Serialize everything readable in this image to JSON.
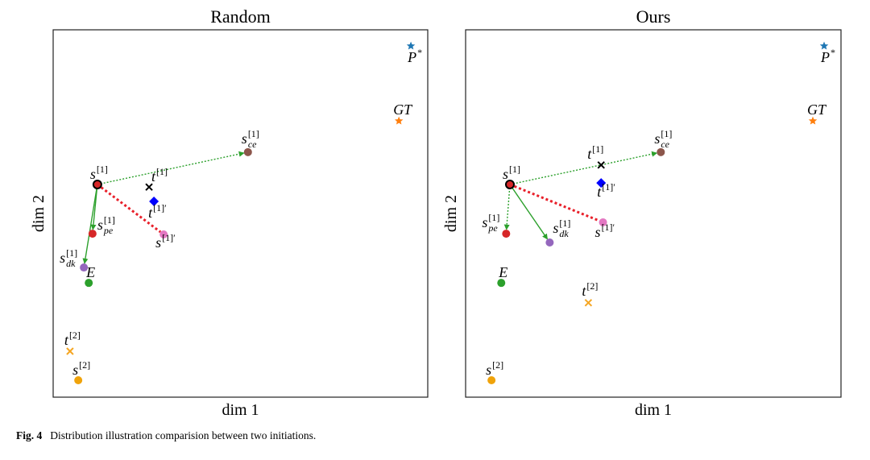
{
  "chart_data": [
    {
      "type": "scatter",
      "title": "Random",
      "xlabel": "dim 1",
      "ylabel": "dim 2",
      "xlim": [
        0,
        100
      ],
      "ylim": [
        0,
        100
      ],
      "points": [
        {
          "label": {
            "base": "P",
            "sup": "*"
          },
          "x": 95.5,
          "y": 95.6,
          "marker": "star",
          "color": "#1f77b4"
        },
        {
          "label": {
            "base": "GT"
          },
          "x": 92.3,
          "y": 75.2,
          "marker": "star",
          "color": "#ff7f0e"
        },
        {
          "label": {
            "base": "s",
            "sup": "[1]",
            "sub": "ce"
          },
          "x": 52.0,
          "y": 66.7,
          "marker": "circle",
          "color": "#8c564b"
        },
        {
          "label": {
            "base": "s",
            "sup": "[1]"
          },
          "x": 11.8,
          "y": 57.9,
          "marker": "circle",
          "color": "#d62728",
          "edge": "#000000"
        },
        {
          "label": {
            "base": "t",
            "sup": "[1]"
          },
          "x": 25.6,
          "y": 57.2,
          "marker": "x",
          "color": "#000000"
        },
        {
          "label": {
            "base": "t",
            "sup": "[1]′"
          },
          "x": 26.9,
          "y": 53.3,
          "marker": "diamond",
          "color": "#0000ff"
        },
        {
          "label": {
            "base": "s",
            "sup": "[1]",
            "sub": "pe"
          },
          "x": 10.5,
          "y": 44.5,
          "marker": "circle",
          "color": "#d62728"
        },
        {
          "label": {
            "base": "s",
            "sup": "[1]′"
          },
          "x": 29.5,
          "y": 44.3,
          "marker": "circle",
          "color": "#e377c2"
        },
        {
          "label": {
            "base": "s",
            "sup": "[1]",
            "sub": "dk"
          },
          "x": 8.2,
          "y": 35.3,
          "marker": "circle",
          "color": "#9467bd"
        },
        {
          "label": {
            "base": "E"
          },
          "x": 9.5,
          "y": 31.1,
          "marker": "circle",
          "color": "#2ca02c"
        },
        {
          "label": {
            "base": "t",
            "sup": "[2]"
          },
          "x": 4.5,
          "y": 12.5,
          "marker": "x",
          "color": "#f5a623"
        },
        {
          "label": {
            "base": "s",
            "sup": "[2]"
          },
          "x": 6.7,
          "y": 4.6,
          "marker": "circle",
          "color": "#f0a30a"
        }
      ],
      "arrows": [
        {
          "from": 3,
          "to": 2,
          "color": "#2ca02c",
          "style": "dotted",
          "head": true
        },
        {
          "from": 3,
          "to": 6,
          "color": "#2ca02c",
          "style": "solid",
          "head": true
        },
        {
          "from": 3,
          "to": 8,
          "color": "#2ca02c",
          "style": "solid",
          "head": true
        },
        {
          "from": 3,
          "to": 7,
          "color": "#e8202a",
          "style": "dotted",
          "head": false
        }
      ]
    },
    {
      "type": "scatter",
      "title": "Ours",
      "xlabel": "dim 1",
      "ylabel": "dim 2",
      "xlim": [
        0,
        100
      ],
      "ylim": [
        0,
        100
      ],
      "points": [
        {
          "label": {
            "base": "P",
            "sup": "*"
          },
          "x": 95.5,
          "y": 95.6,
          "marker": "star",
          "color": "#1f77b4"
        },
        {
          "label": {
            "base": "GT"
          },
          "x": 92.5,
          "y": 75.2,
          "marker": "star",
          "color": "#ff7f0e"
        },
        {
          "label": {
            "base": "s",
            "sup": "[1]",
            "sub": "ce"
          },
          "x": 52.0,
          "y": 66.7,
          "marker": "circle",
          "color": "#8c564b"
        },
        {
          "label": {
            "base": "s",
            "sup": "[1]"
          },
          "x": 11.8,
          "y": 57.9,
          "marker": "circle",
          "color": "#d62728",
          "edge": "#000000"
        },
        {
          "label": {
            "base": "t",
            "sup": "[1]"
          },
          "x": 36.1,
          "y": 63.2,
          "marker": "x",
          "color": "#000000"
        },
        {
          "label": {
            "base": "t",
            "sup": "[1]′"
          },
          "x": 36.1,
          "y": 58.3,
          "marker": "diamond",
          "color": "#0000ff"
        },
        {
          "label": {
            "base": "s",
            "sup": "[1]",
            "sub": "pe"
          },
          "x": 10.8,
          "y": 44.5,
          "marker": "circle",
          "color": "#d62728"
        },
        {
          "label": {
            "base": "s",
            "sup": "[1]′"
          },
          "x": 36.6,
          "y": 47.6,
          "marker": "circle",
          "color": "#e377c2"
        },
        {
          "label": {
            "base": "s",
            "sup": "[1]",
            "sub": "dk"
          },
          "x": 22.4,
          "y": 42.1,
          "marker": "circle",
          "color": "#9467bd"
        },
        {
          "label": {
            "base": "E"
          },
          "x": 9.5,
          "y": 31.1,
          "marker": "circle",
          "color": "#2ca02c"
        },
        {
          "label": {
            "base": "t",
            "sup": "[2]"
          },
          "x": 32.7,
          "y": 25.7,
          "marker": "x",
          "color": "#f5a623"
        },
        {
          "label": {
            "base": "s",
            "sup": "[2]"
          },
          "x": 6.9,
          "y": 4.6,
          "marker": "circle",
          "color": "#f0a30a"
        }
      ],
      "arrows": [
        {
          "from": 3,
          "to": 2,
          "color": "#2ca02c",
          "style": "dotted",
          "head": true
        },
        {
          "from": 3,
          "to": 6,
          "color": "#2ca02c",
          "style": "dotted",
          "head": true
        },
        {
          "from": 3,
          "to": 8,
          "color": "#2ca02c",
          "style": "solid",
          "head": true
        },
        {
          "from": 3,
          "to": 7,
          "color": "#e8202a",
          "style": "dotted",
          "head": false
        }
      ]
    }
  ],
  "caption": {
    "label": "Fig. 4",
    "text": "Distribution illustration comparision between two initiations."
  }
}
